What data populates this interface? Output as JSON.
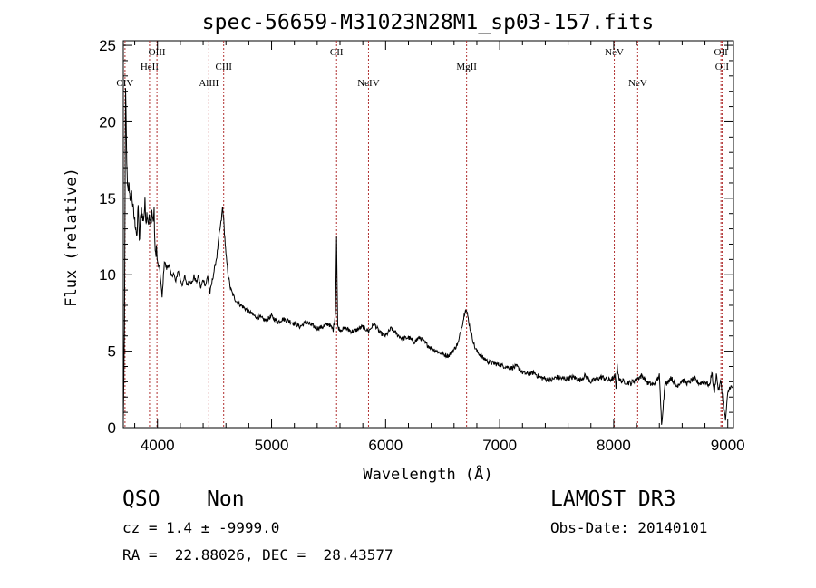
{
  "chart_data": {
    "type": "line",
    "title": "spec-56659-M31023N28M1_sp03-157.fits",
    "xlabel": "Wavelength (Å)",
    "ylabel": "Flux (relative)",
    "xlim": [
      3700,
      9050
    ],
    "ylim": [
      0,
      25.3
    ],
    "xticks": [
      4000,
      5000,
      6000,
      7000,
      8000,
      9000
    ],
    "yticks": [
      0,
      5,
      10,
      15,
      20,
      25
    ],
    "xtick_labels": [
      "4000",
      "5000",
      "6000",
      "7000",
      "8000",
      "9000"
    ],
    "ytick_labels": [
      "0",
      "5",
      "10",
      "15",
      "20",
      "25"
    ],
    "line_color": "#000000",
    "marker_color": "#b03030",
    "series": [
      {
        "x": [
          3700,
          3710,
          3720,
          3730,
          3740,
          3750,
          3760,
          3770,
          3780,
          3790,
          3800,
          3810,
          3820,
          3830,
          3840,
          3850,
          3860,
          3870,
          3880,
          3890,
          3900,
          3910,
          3920,
          3930,
          3940,
          3950,
          3960,
          3970,
          3980,
          3990,
          4000,
          4020,
          4040,
          4060,
          4080,
          4100,
          4120,
          4140,
          4160,
          4180,
          4200,
          4220,
          4240,
          4260,
          4280,
          4300,
          4320,
          4340,
          4360,
          4380,
          4400,
          4420,
          4440,
          4460,
          4480,
          4500,
          4520,
          4540,
          4560,
          4570,
          4580,
          4590,
          4600,
          4620,
          4640,
          4660,
          4680,
          4700,
          4750,
          4800,
          4850,
          4900,
          4950,
          5000,
          5050,
          5100,
          5150,
          5200,
          5250,
          5300,
          5350,
          5400,
          5450,
          5500,
          5540,
          5560,
          5570,
          5575,
          5580,
          5600,
          5650,
          5700,
          5750,
          5800,
          5850,
          5900,
          5950,
          6000,
          6050,
          6100,
          6150,
          6200,
          6250,
          6300,
          6350,
          6400,
          6450,
          6500,
          6550,
          6600,
          6640,
          6660,
          6680,
          6700,
          6710,
          6720,
          6740,
          6760,
          6780,
          6800,
          6850,
          6900,
          6950,
          7000,
          7050,
          7100,
          7150,
          7200,
          7250,
          7300,
          7350,
          7400,
          7450,
          7500,
          7550,
          7600,
          7650,
          7700,
          7750,
          7800,
          7850,
          7900,
          7950,
          8000,
          8010,
          8020,
          8030,
          8050,
          8100,
          8150,
          8200,
          8250,
          8300,
          8350,
          8400,
          8420,
          8440,
          8450,
          8460,
          8500,
          8550,
          8600,
          8650,
          8700,
          8750,
          8800,
          8820,
          8840,
          8860,
          8880,
          8900,
          8920,
          8940,
          8960,
          8980,
          9000,
          9020,
          9040
        ],
        "y": [
          0.3,
          6,
          22.5,
          17,
          15.5,
          16.2,
          14.5,
          15.5,
          14.8,
          14,
          13.5,
          13.2,
          12.2,
          14.8,
          12,
          13.5,
          14.3,
          13.6,
          13.8,
          14.7,
          13.6,
          14.1,
          13.4,
          13.8,
          13.0,
          14.2,
          13.5,
          14.0,
          11.2,
          11.8,
          10.8,
          10.3,
          8.5,
          10.9,
          10.4,
          10.7,
          9.9,
          10.1,
          9.5,
          10.3,
          9.7,
          9.3,
          9.9,
          9.3,
          9.7,
          9.4,
          9.9,
          9.5,
          9.9,
          9.1,
          9.7,
          9.3,
          9.9,
          8.8,
          9.6,
          10.4,
          11.2,
          12.6,
          13.6,
          14.4,
          13.6,
          12.4,
          11.3,
          10.0,
          9.1,
          8.7,
          8.4,
          8.2,
          7.9,
          7.6,
          7.3,
          7.2,
          7.0,
          7.3,
          6.9,
          7.1,
          7.0,
          6.8,
          6.6,
          6.9,
          6.7,
          6.5,
          6.6,
          6.8,
          6.4,
          7.5,
          12.5,
          9,
          6.6,
          6.4,
          6.5,
          6.3,
          6.4,
          6.6,
          6.3,
          6.8,
          6.2,
          6.0,
          6.5,
          6.1,
          5.8,
          5.9,
          5.6,
          5.9,
          5.5,
          5.2,
          5.0,
          4.8,
          4.7,
          5.1,
          5.6,
          6.4,
          7.0,
          7.8,
          7.6,
          7.3,
          6.5,
          5.9,
          5.3,
          5.0,
          4.6,
          4.3,
          4.2,
          4.1,
          4.0,
          3.9,
          4.0,
          3.6,
          3.5,
          3.6,
          3.3,
          3.2,
          3.1,
          3.3,
          3.2,
          3.2,
          3.3,
          3.1,
          3.4,
          3.0,
          3.2,
          3.3,
          3.1,
          3.2,
          3.4,
          2.6,
          4.0,
          3.1,
          3.0,
          2.9,
          3.2,
          3.4,
          2.9,
          2.8,
          3.4,
          0.3,
          2.0,
          3.1,
          2.8,
          3.3,
          2.7,
          3.1,
          2.9,
          3.2,
          2.9,
          3.0,
          2.9,
          2.7,
          3.7,
          2.2,
          3.5,
          2.4,
          3.1,
          1.5,
          0.5,
          2.2,
          2.7,
          2.6
        ]
      }
    ],
    "lines": [
      {
        "label": "CIV",
        "x": 3715,
        "row": 3
      },
      {
        "label": "HeII",
        "x": 3930,
        "row": 2
      },
      {
        "label": "OIII",
        "x": 3995,
        "row": 1
      },
      {
        "label": "AlIII",
        "x": 4450,
        "row": 3
      },
      {
        "label": "CIII",
        "x": 4580,
        "row": 2
      },
      {
        "label": "CII",
        "x": 5570,
        "row": 1
      },
      {
        "label": "NeIV",
        "x": 5850,
        "row": 3
      },
      {
        "label": "MgII",
        "x": 6710,
        "row": 2
      },
      {
        "label": "NeV",
        "x": 8005,
        "row": 1
      },
      {
        "label": "NeV",
        "x": 8210,
        "row": 3
      },
      {
        "label": "OII",
        "x": 8940,
        "row": 1
      },
      {
        "label": "OII",
        "x": 8950,
        "row": 2
      }
    ]
  },
  "info": {
    "class": "QSO",
    "subclass": "Non",
    "survey": "LAMOST DR3",
    "cz": "cz = 1.4 ± -9999.0",
    "obs_date": "Obs-Date: 20140101",
    "coords": "RA =  22.88026, DEC =  28.43577"
  }
}
